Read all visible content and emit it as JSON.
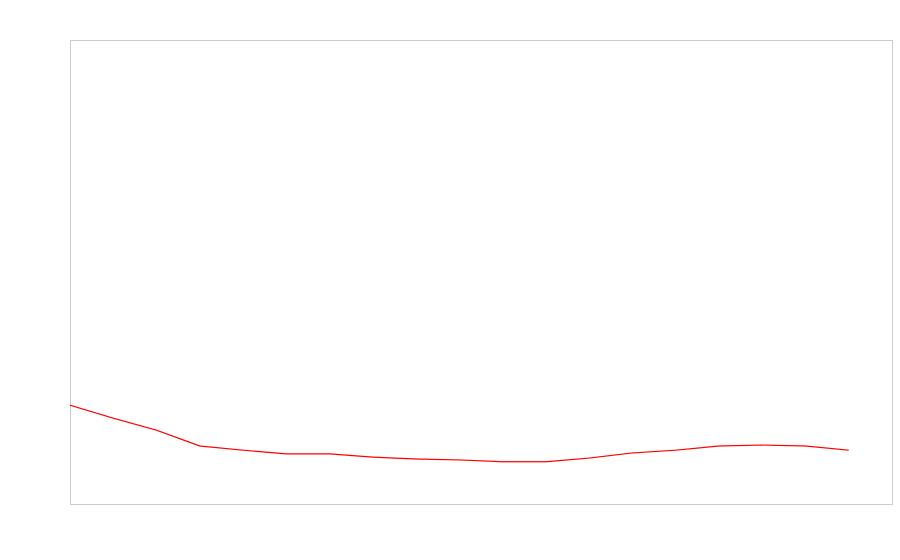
{
  "chart_data": {
    "type": "line",
    "categories": [
      null,
      null,
      null,
      null,
      null,
      null,
      null,
      null,
      null,
      null,
      null,
      null,
      null,
      null,
      null,
      null,
      null,
      null,
      null
    ],
    "series": [
      {
        "color": "#ff0000",
        "values": [
          21.3,
          18.5,
          15.9,
          12.5,
          11.6,
          10.8,
          10.8,
          10.1,
          9.7,
          9.5,
          9.1,
          9.1,
          9.9,
          11.0,
          11.6,
          12.5,
          12.7,
          12.5,
          11.6
        ]
      }
    ],
    "ylim": [
      0,
      100
    ]
  }
}
